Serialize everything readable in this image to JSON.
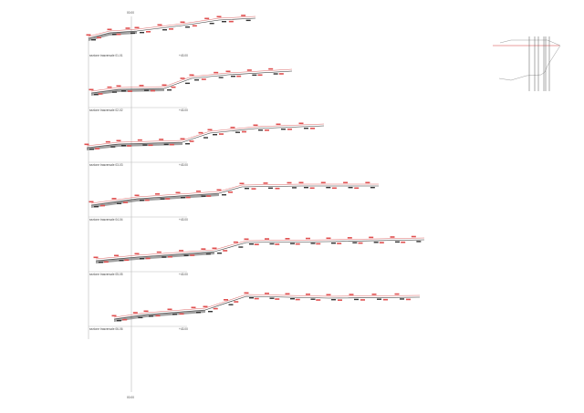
{
  "drawing": {
    "axis_top_label": "00.00",
    "axis_bottom_label": "00.00",
    "sections": [
      {
        "label": "sezione trasversale 01-01",
        "elevation": "+43.00"
      },
      {
        "label": "sezione trasversale 02-02",
        "elevation": "+43.00"
      },
      {
        "label": "sezione trasversale 03-03",
        "elevation": "+43.00"
      },
      {
        "label": "sezione trasversale 04-04",
        "elevation": "+43.00"
      },
      {
        "label": "sezione trasversale 05-05",
        "elevation": "+43.00"
      },
      {
        "label": "sezione trasversale 06-06",
        "elevation": "+43.00"
      }
    ],
    "colors": {
      "terrain": "#333333",
      "project": "#d23c3c",
      "labels": "#e05050",
      "grid": "#bbbbbb"
    }
  }
}
